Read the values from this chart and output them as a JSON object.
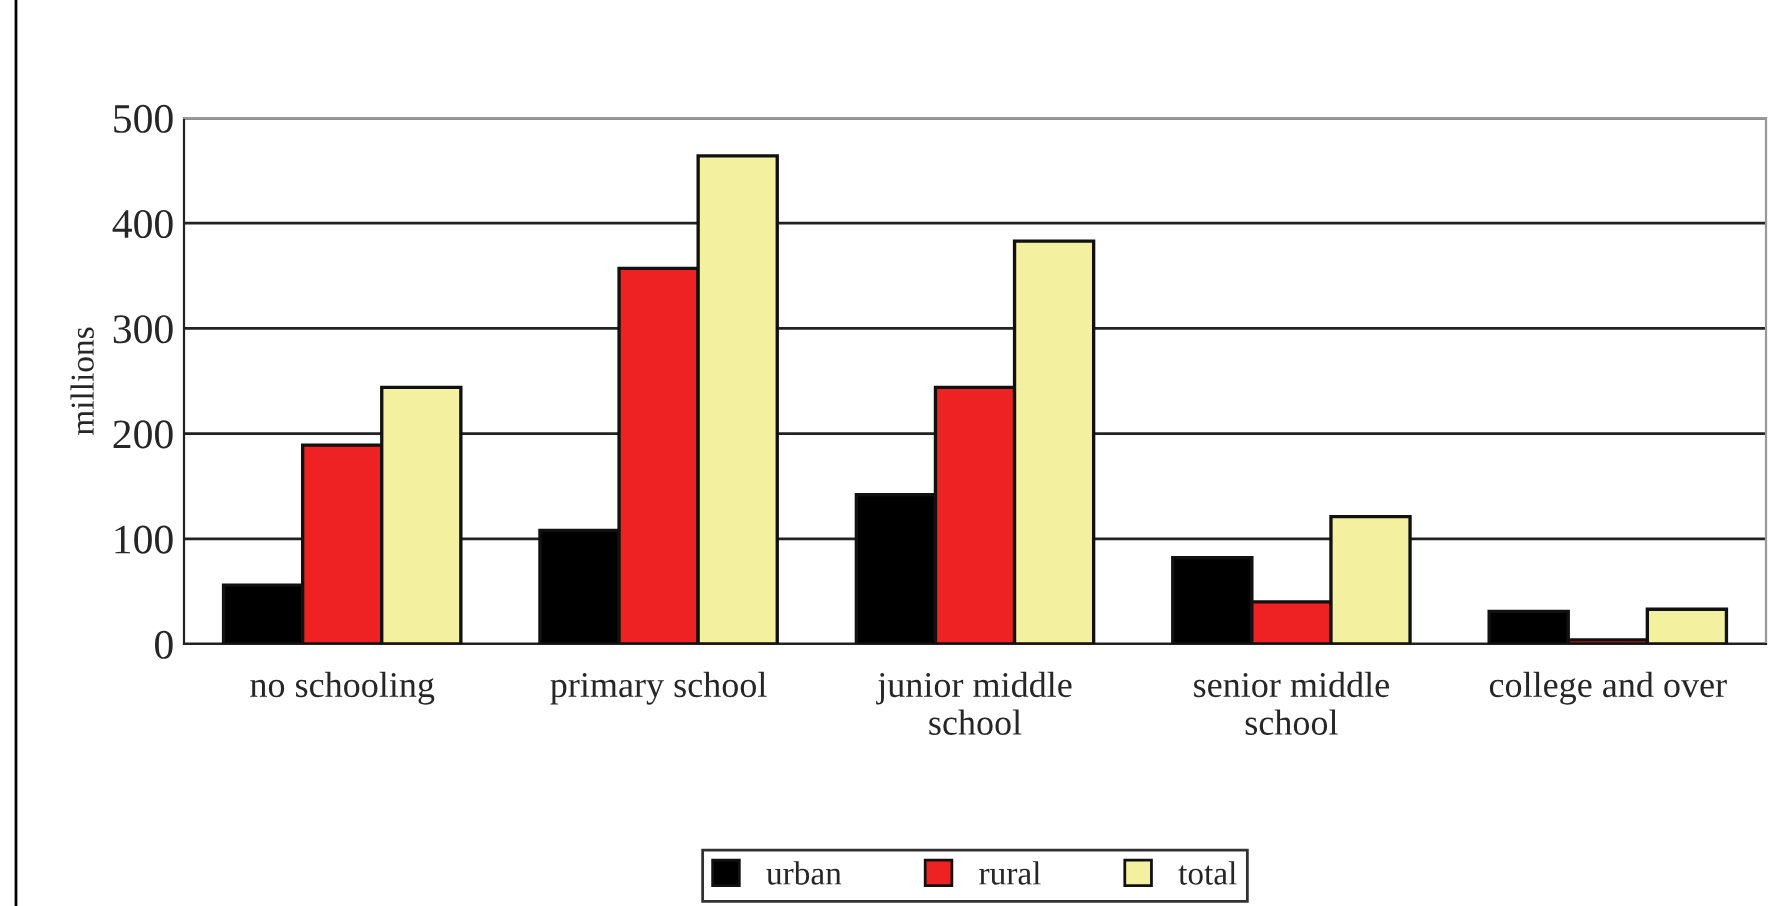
{
  "chart_data": {
    "type": "bar",
    "ylabel": "millions",
    "categories": [
      "no schooling",
      "primary school",
      "junior middle\nschool",
      "senior middle\nschool",
      "college and over"
    ],
    "series": [
      {
        "name": "urban",
        "color": "#000000",
        "values": [
          56,
          108,
          142,
          82,
          31
        ]
      },
      {
        "name": "rural",
        "color": "#ee2222",
        "values": [
          189,
          357,
          244,
          40,
          4
        ]
      },
      {
        "name": "total",
        "color": "#f3f19f",
        "values": [
          244,
          464,
          383,
          121,
          33
        ]
      }
    ],
    "ylim": [
      0,
      500
    ],
    "yticks": [
      0,
      100,
      200,
      300,
      400,
      500
    ],
    "grid": "y",
    "legend": "bottom"
  }
}
